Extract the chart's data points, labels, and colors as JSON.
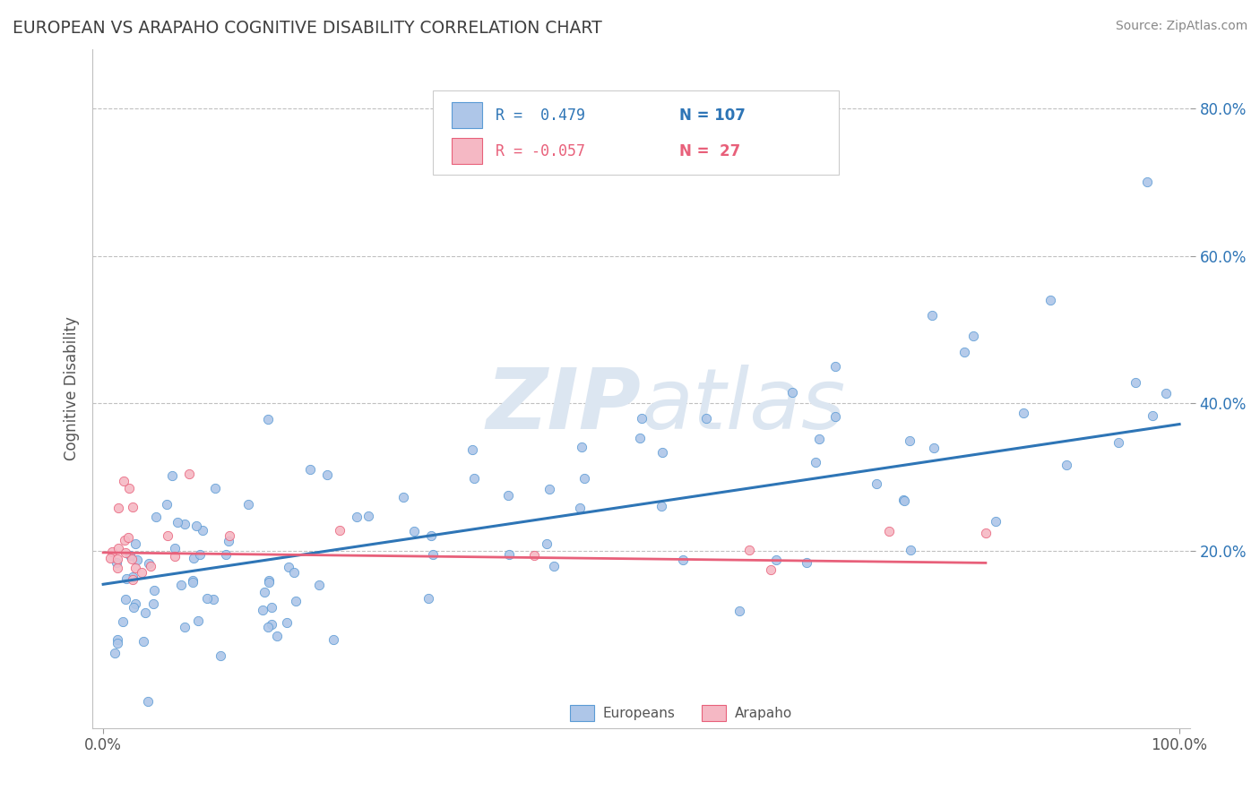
{
  "title": "EUROPEAN VS ARAPAHO COGNITIVE DISABILITY CORRELATION CHART",
  "source": "Source: ZipAtlas.com",
  "ylabel": "Cognitive Disability",
  "xlim": [
    -0.01,
    1.01
  ],
  "ylim": [
    -0.04,
    0.88
  ],
  "xticks": [
    0.0,
    1.0
  ],
  "xticklabels": [
    "0.0%",
    "100.0%"
  ],
  "ytick_positions": [
    0.2,
    0.4,
    0.6,
    0.8
  ],
  "yticklabels": [
    "20.0%",
    "40.0%",
    "60.0%",
    "80.0%"
  ],
  "european_R": 0.479,
  "european_N": 107,
  "arapaho_R": -0.057,
  "arapaho_N": 27,
  "european_color": "#aec6e8",
  "arapaho_color": "#f5b8c4",
  "european_edge_color": "#5b9bd5",
  "arapaho_edge_color": "#e8607a",
  "european_line_color": "#2e75b6",
  "arapaho_line_color": "#e8607a",
  "background_color": "#ffffff",
  "grid_color": "#c0c0c0",
  "title_color": "#404040",
  "watermark_color": "#dce6f1",
  "legend_european_label": "Europeans",
  "legend_arapaho_label": "Arapaho",
  "eu_line_x0": 0.0,
  "eu_line_x1": 1.0,
  "eu_line_y0": 0.155,
  "eu_line_y1": 0.372,
  "ar_line_x0": 0.0,
  "ar_line_x1": 0.82,
  "ar_line_y0": 0.198,
  "ar_line_y1": 0.184
}
